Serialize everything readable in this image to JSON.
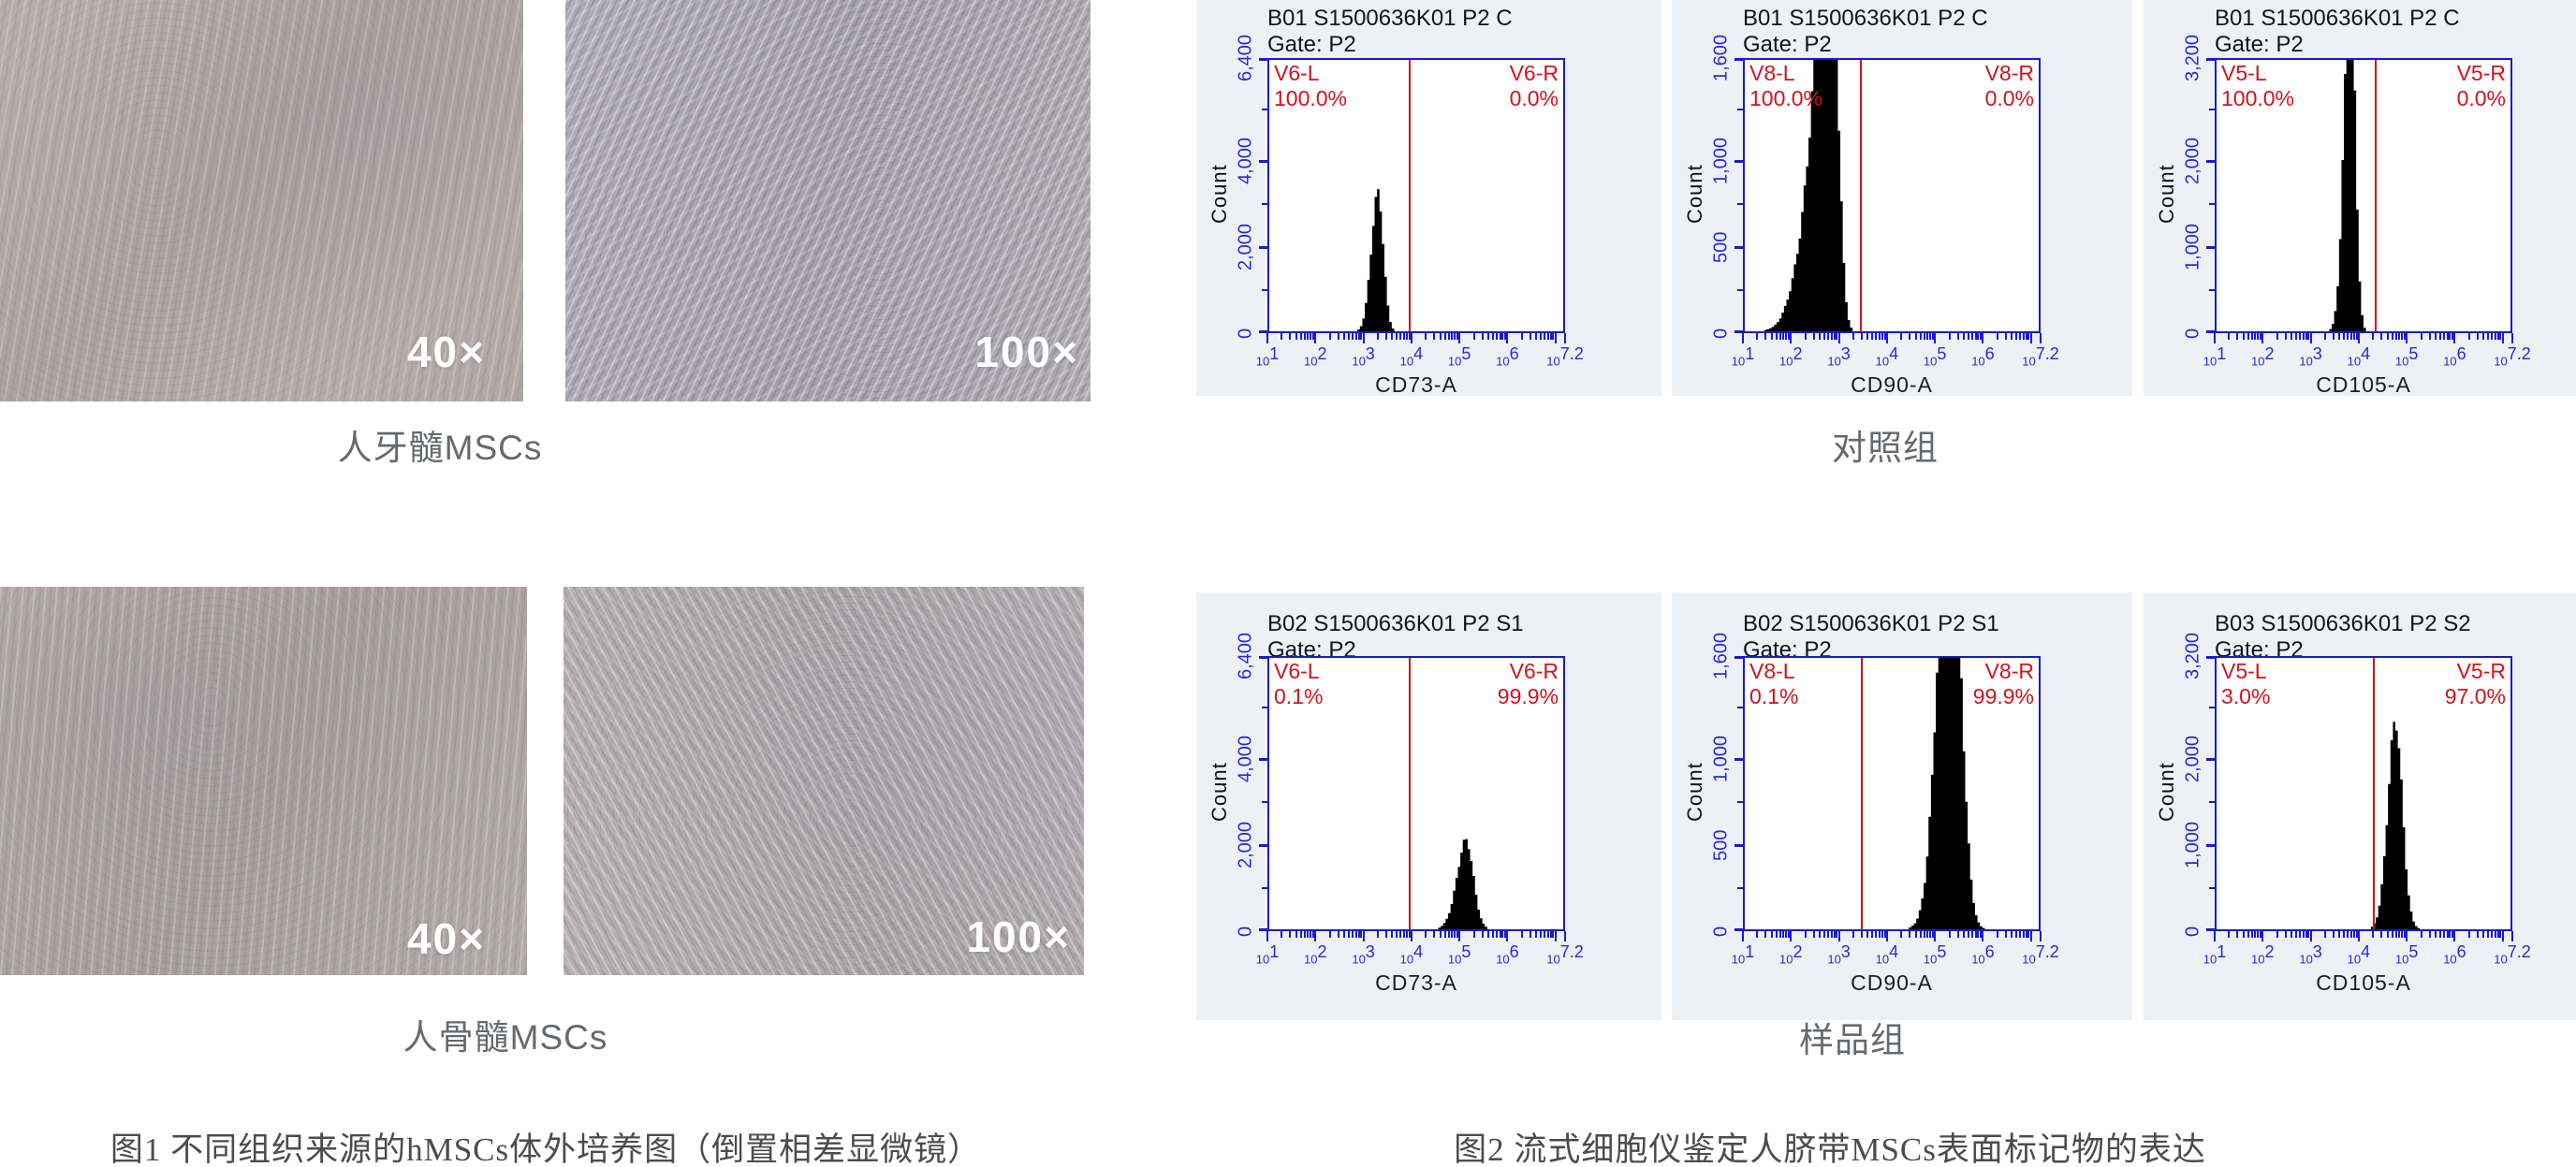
{
  "figure1": {
    "caption": "图1 不同组织来源的hMSCs体外培养图（倒置相差显微镜）",
    "rows": [
      {
        "label": "人牙髓MSCs",
        "magnifications": [
          "40×",
          "100×"
        ]
      },
      {
        "label": "人骨髓MSCs",
        "magnifications": [
          "40×",
          "100×"
        ]
      }
    ]
  },
  "figure2": {
    "caption": "图2 流式细胞仪鉴定人脐带MSCs表面标记物的表达",
    "groups": [
      {
        "label": "对照组"
      },
      {
        "label": "样品组"
      }
    ]
  },
  "colors": {
    "card_bg": "#edf1f5",
    "axis_blue": "#1a1ad0",
    "tick_text_blue": "#2828dd",
    "gate_red": "#d01421",
    "histogram_black": "#000000",
    "label_gray": "#666a6d",
    "caption_gray": "#4c4c4c",
    "magnification_white": "#ffffff"
  },
  "chart_data": [
    {
      "type": "area",
      "group": "对照组",
      "title": "B01 S1500636K01 P2 C",
      "gate": "Gate: P2",
      "marker": "CD73-A",
      "ylabel": "Count",
      "left_gate_label": "V6-L",
      "left_gate_pct": "100.0%",
      "right_gate_label": "V6-R",
      "right_gate_pct": "0.0%",
      "y_max": 6400,
      "y_ticks": [
        {
          "value": 0,
          "label": "0"
        },
        {
          "value": 2000,
          "label": "2,000"
        },
        {
          "value": 4000,
          "label": "4,000"
        },
        {
          "value": 6400,
          "label": "6,400"
        }
      ],
      "x_scale": "log10",
      "x_min_exp": 1,
      "x_max_exp": 7.2,
      "x_tick_exponents": [
        "1",
        "2",
        "3",
        "4",
        "5",
        "6",
        "7.2"
      ],
      "gate_line_exp": 3.95,
      "histogram": {
        "peak_exp": 3.3,
        "sigma_left": 0.14,
        "sigma_right": 0.11,
        "peak_count": 3450
      }
    },
    {
      "type": "area",
      "group": "对照组",
      "title": "B01 S1500636K01 P2 C",
      "gate": "Gate: P2",
      "marker": "CD90-A",
      "ylabel": "Count",
      "left_gate_label": "V8-L",
      "left_gate_pct": "100.0%",
      "right_gate_label": "V8-R",
      "right_gate_pct": "0.0%",
      "y_max": 1600,
      "y_ticks": [
        {
          "value": 0,
          "label": "0"
        },
        {
          "value": 500,
          "label": "500"
        },
        {
          "value": 1000,
          "label": "1,000"
        },
        {
          "value": 1600,
          "label": "1,600"
        }
      ],
      "x_scale": "log10",
      "x_min_exp": 1,
      "x_max_exp": 7.2,
      "x_tick_exponents": [
        "1",
        "2",
        "3",
        "4",
        "5",
        "6",
        "7.2"
      ],
      "gate_line_exp": 3.43,
      "histogram": {
        "peak_exp": 2.85,
        "sigma_left": 0.42,
        "sigma_right": 0.13,
        "peak_count": 2300
      }
    },
    {
      "type": "area",
      "group": "对照组",
      "title": "B01 S1500636K01 P2 C",
      "gate": "Gate: P2",
      "marker": "CD105-A",
      "ylabel": "Count",
      "left_gate_label": "V5-L",
      "left_gate_pct": "100.0%",
      "right_gate_label": "V5-R",
      "right_gate_pct": "0.0%",
      "y_max": 3200,
      "y_ticks": [
        {
          "value": 0,
          "label": "0"
        },
        {
          "value": 1000,
          "label": "1,000"
        },
        {
          "value": 2000,
          "label": "2,000"
        },
        {
          "value": 3200,
          "label": "3,200"
        }
      ],
      "x_scale": "log10",
      "x_min_exp": 1,
      "x_max_exp": 7.2,
      "x_tick_exponents": [
        "1",
        "2",
        "3",
        "4",
        "5",
        "6",
        "7.2"
      ],
      "gate_line_exp": 4.33,
      "histogram": {
        "peak_exp": 3.82,
        "sigma_left": 0.13,
        "sigma_right": 0.1,
        "peak_count": 4400
      }
    },
    {
      "type": "area",
      "group": "样品组",
      "title": "B02 S1500636K01 P2 S1",
      "gate": "Gate: P2",
      "marker": "CD73-A",
      "ylabel": "Count",
      "left_gate_label": "V6-L",
      "left_gate_pct": "0.1%",
      "right_gate_label": "V6-R",
      "right_gate_pct": "99.9%",
      "y_max": 6400,
      "y_ticks": [
        {
          "value": 0,
          "label": "0"
        },
        {
          "value": 2000,
          "label": "2,000"
        },
        {
          "value": 4000,
          "label": "4,000"
        },
        {
          "value": 6400,
          "label": "6,400"
        }
      ],
      "x_scale": "log10",
      "x_min_exp": 1,
      "x_max_exp": 7.2,
      "x_tick_exponents": [
        "1",
        "2",
        "3",
        "4",
        "5",
        "6",
        "7.2"
      ],
      "gate_line_exp": 3.95,
      "histogram": {
        "peak_exp": 5.15,
        "sigma_left": 0.2,
        "sigma_right": 0.16,
        "peak_count": 1990
      }
    },
    {
      "type": "area",
      "group": "样品组",
      "title": "B02 S1500636K01 P2 S1",
      "gate": "Gate: P2",
      "marker": "CD90-A",
      "ylabel": "Count",
      "left_gate_label": "V8-L",
      "left_gate_pct": "0.1%",
      "right_gate_label": "V8-R",
      "right_gate_pct": "99.9%",
      "y_max": 1600,
      "y_ticks": [
        {
          "value": 0,
          "label": "0"
        },
        {
          "value": 500,
          "label": "500"
        },
        {
          "value": 1000,
          "label": "1,000"
        },
        {
          "value": 1600,
          "label": "1,600"
        }
      ],
      "x_scale": "log10",
      "x_min_exp": 1,
      "x_max_exp": 7.2,
      "x_tick_exponents": [
        "1",
        "2",
        "3",
        "4",
        "5",
        "6",
        "7.2"
      ],
      "gate_line_exp": 3.45,
      "histogram": {
        "peak_exp": 5.35,
        "sigma_left": 0.26,
        "sigma_right": 0.2,
        "peak_count": 2750
      }
    },
    {
      "type": "area",
      "group": "样品组",
      "title": "B03 S1500636K01 P2 S2",
      "gate": "Gate: P2",
      "marker": "CD105-A",
      "ylabel": "Count",
      "left_gate_label": "V5-L",
      "left_gate_pct": "3.0%",
      "right_gate_label": "V5-R",
      "right_gate_pct": "97.0%",
      "y_max": 3200,
      "y_ticks": [
        {
          "value": 0,
          "label": "0"
        },
        {
          "value": 1000,
          "label": "1,000"
        },
        {
          "value": 2000,
          "label": "2,000"
        },
        {
          "value": 3200,
          "label": "3,200"
        }
      ],
      "x_scale": "log10",
      "x_min_exp": 1,
      "x_max_exp": 7.2,
      "x_tick_exponents": [
        "1",
        "2",
        "3",
        "4",
        "5",
        "6",
        "7.2"
      ],
      "gate_line_exp": 4.3,
      "histogram": {
        "peak_exp": 4.78,
        "sigma_left": 0.17,
        "sigma_right": 0.15,
        "peak_count": 2320
      }
    }
  ]
}
